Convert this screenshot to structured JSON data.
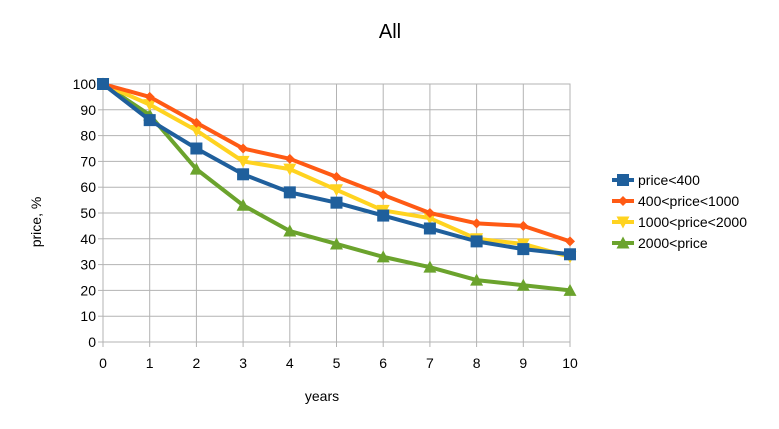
{
  "chart_data": {
    "type": "line",
    "title": "All",
    "xlabel": "years",
    "ylabel": "price, %",
    "x": [
      0,
      1,
      2,
      3,
      4,
      5,
      6,
      7,
      8,
      9,
      10
    ],
    "xlim": [
      0,
      10
    ],
    "ylim": [
      0,
      100
    ],
    "y_ticks": [
      0,
      10,
      20,
      30,
      40,
      50,
      60,
      70,
      80,
      90,
      100
    ],
    "grid": true,
    "legend_position": "right",
    "series": [
      {
        "name": "price<400",
        "color": "#1f5f9c",
        "marker": "square",
        "values": [
          100,
          86,
          75,
          65,
          58,
          54,
          49,
          44,
          39,
          36,
          34
        ]
      },
      {
        "name": "400<price<1000",
        "color": "#ff5a14",
        "marker": "diamond",
        "values": [
          100,
          95,
          85,
          75,
          71,
          64,
          57,
          50,
          46,
          45,
          39
        ]
      },
      {
        "name": "1000<price<2000",
        "color": "#ffd320",
        "marker": "triangle-down",
        "values": [
          100,
          92,
          82,
          70,
          67,
          59,
          51,
          48,
          40,
          38,
          33
        ]
      },
      {
        "name": "2000<price",
        "color": "#6ba32d",
        "marker": "triangle-up",
        "values": [
          100,
          88,
          67,
          53,
          43,
          38,
          33,
          29,
          24,
          22,
          20
        ]
      }
    ]
  }
}
